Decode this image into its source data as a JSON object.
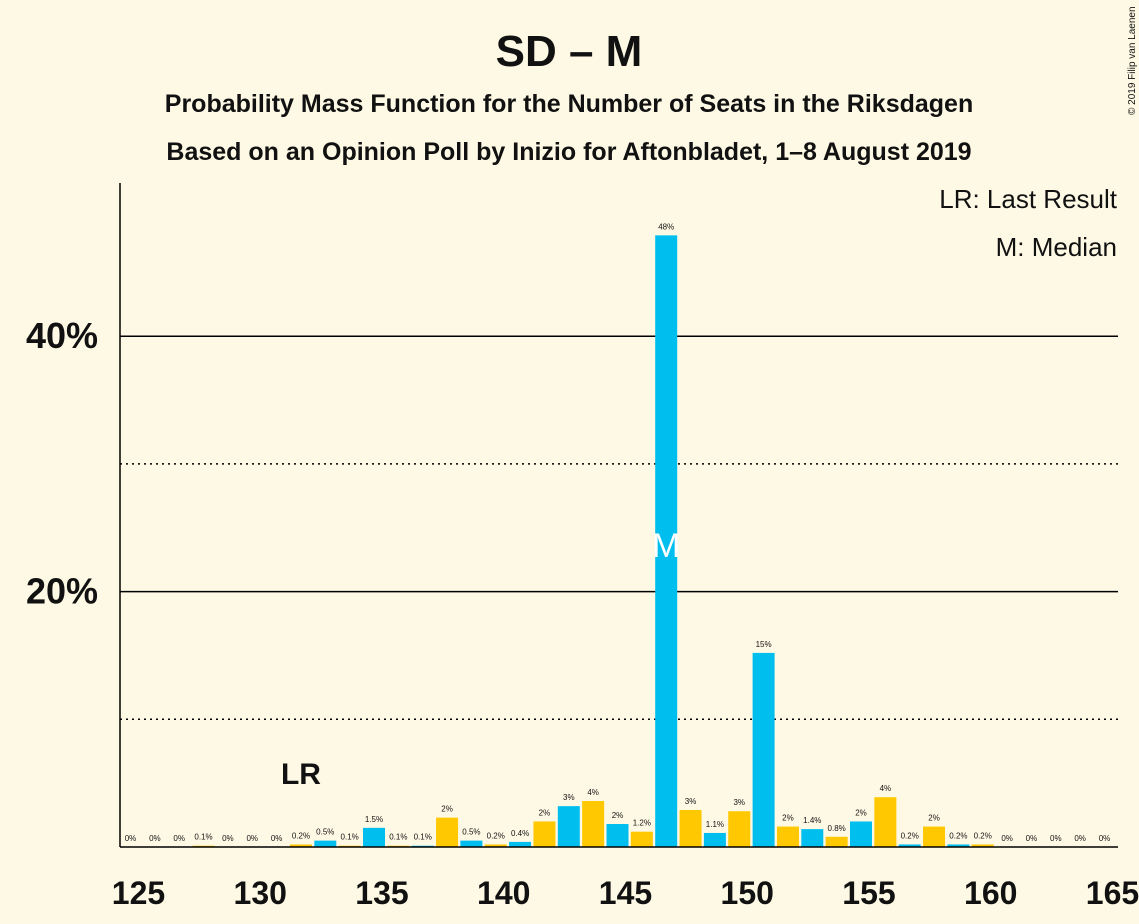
{
  "chart_data": {
    "type": "bar",
    "title": "SD – M",
    "subtitle": [
      "Probability Mass Function for the Number of Seats in the Riksdagen",
      "Based on an Opinion Poll by Inizio for Aftonbladet, 1–8 August 2019"
    ],
    "copyright": "© 2019 Filip van Laenen",
    "legend": [
      "LR: Last Result",
      "M: Median"
    ],
    "x": [
      125,
      126,
      127,
      128,
      129,
      130,
      131,
      132,
      133,
      134,
      135,
      136,
      137,
      138,
      139,
      140,
      141,
      142,
      143,
      144,
      145,
      146,
      147,
      148,
      149,
      150,
      151,
      152,
      153,
      154,
      155,
      156,
      157,
      158,
      159,
      160,
      161,
      162,
      163,
      164,
      165
    ],
    "values": [
      0,
      0,
      0,
      0.1,
      0,
      0,
      0,
      0.2,
      0.5,
      0.1,
      1.5,
      0.1,
      0.1,
      2.3,
      0.5,
      0.2,
      0.4,
      2.0,
      3.2,
      3.6,
      1.8,
      1.2,
      47.9,
      2.9,
      1.1,
      2.8,
      15.2,
      1.6,
      1.4,
      0.8,
      2.0,
      3.9,
      0.2,
      1.6,
      0.2,
      0.2,
      0,
      0,
      0,
      0,
      0
    ],
    "value_labels": [
      "0%",
      "0%",
      "0%",
      "0.1%",
      "0%",
      "0%",
      "0%",
      "0.2%",
      "0.5%",
      "0.1%",
      "1.5%",
      "0.1%",
      "0.1%",
      "2%",
      "0.5%",
      "0.2%",
      "0.4%",
      "2%",
      "3%",
      "4%",
      "2%",
      "1.2%",
      "48%",
      "3%",
      "1.1%",
      "3%",
      "15%",
      "2%",
      "1.4%",
      "0.8%",
      "2%",
      "4%",
      "0.2%",
      "2%",
      "0.2%",
      "0.2%",
      "0%",
      "0%",
      "0%",
      "0%",
      "0%"
    ],
    "colors": {
      "odd": "#00bfef",
      "even": "#ffc800"
    },
    "last_result": {
      "x": 132,
      "label": "LR"
    },
    "median": {
      "x": 147,
      "label": "M"
    },
    "xlim": [
      125,
      165
    ],
    "xticks": [
      125,
      130,
      135,
      140,
      145,
      150,
      155,
      160,
      165
    ],
    "ylim": [
      0,
      52
    ],
    "yticks": [
      {
        "value": 20,
        "label": "20%"
      },
      {
        "value": 40,
        "label": "40%"
      }
    ],
    "minor_grid": [
      10,
      30
    ]
  }
}
